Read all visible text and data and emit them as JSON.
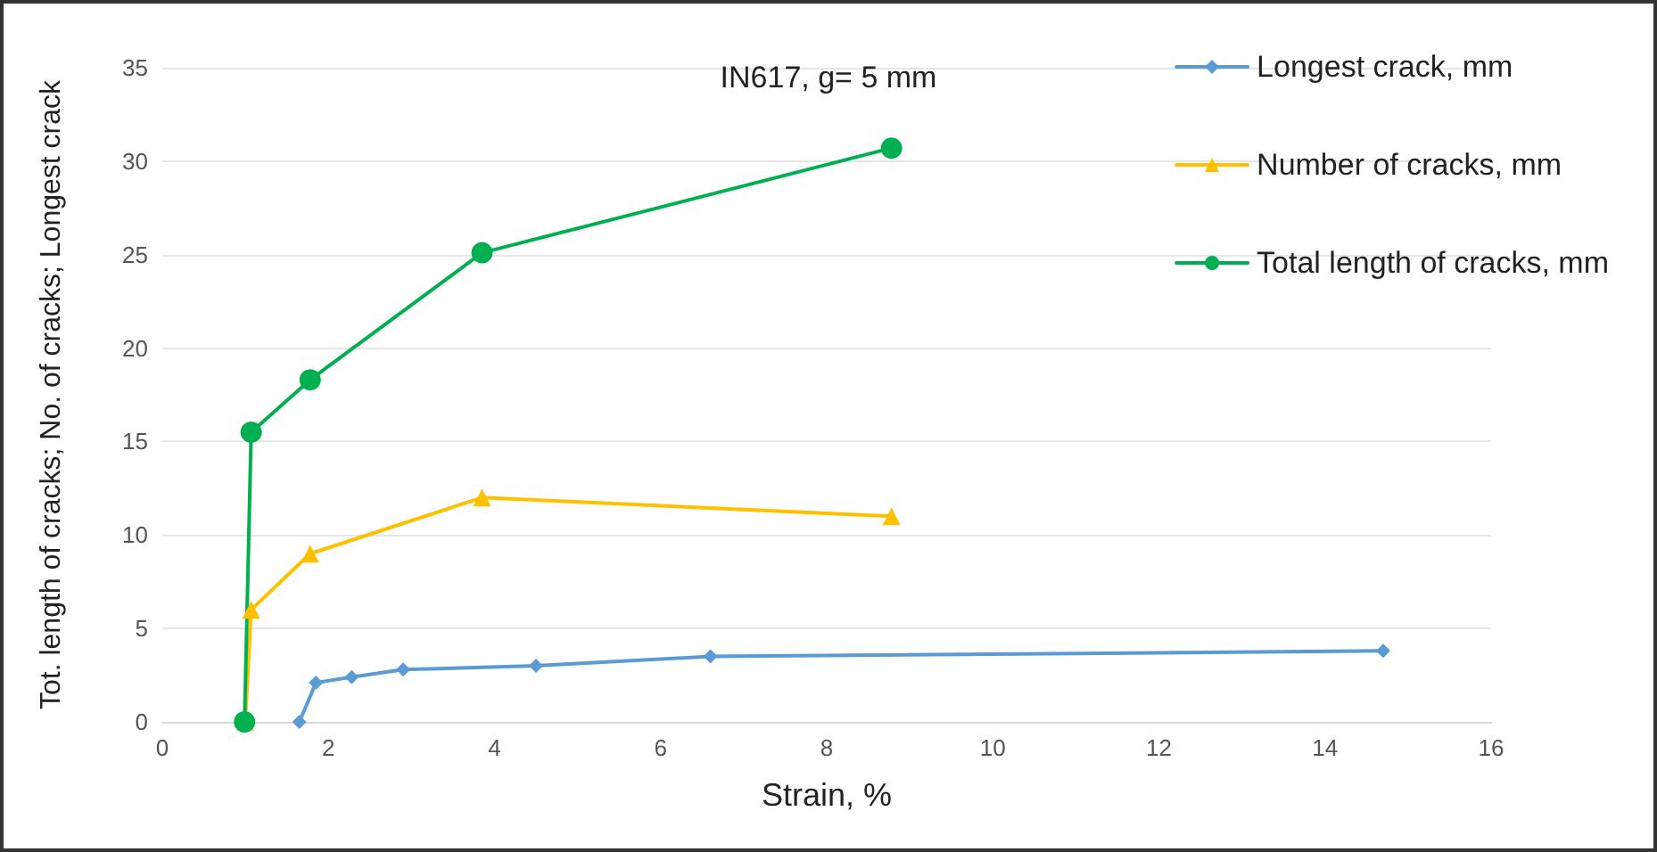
{
  "chart_data": {
    "type": "line",
    "title": "IN617, g= 5 mm",
    "xlabel": "Strain, %",
    "ylabel": "Tot. length of cracks; No. of cracks; Longest crack",
    "series": [
      {
        "name": "Longest crack, mm",
        "color": "#5b9bd5",
        "marker": "diamond",
        "x": [
          1.65,
          1.85,
          2.28,
          2.9,
          4.5,
          6.6,
          14.7
        ],
        "values": [
          0,
          2.1,
          2.4,
          2.8,
          3.0,
          3.5,
          3.8
        ]
      },
      {
        "name": "Number of cracks, mm",
        "color": "#ffc000",
        "marker": "triangle",
        "x": [
          1.0,
          1.07,
          1.78,
          3.85,
          8.78
        ],
        "values": [
          0,
          6,
          9,
          12,
          11
        ]
      },
      {
        "name": "Total length of cracks, mm",
        "color": "#00b050",
        "marker": "circle",
        "x": [
          0.99,
          1.07,
          1.78,
          3.85,
          8.78
        ],
        "values": [
          0,
          15.5,
          18.3,
          25.1,
          30.7
        ]
      }
    ],
    "xlim": [
      0,
      16
    ],
    "xticks": [
      0,
      2,
      4,
      6,
      8,
      10,
      12,
      14,
      16
    ],
    "ylim": [
      0,
      35
    ],
    "yticks": [
      0,
      5,
      10,
      15,
      20,
      25,
      30,
      35
    ],
    "grid": "y",
    "legend": "right"
  }
}
